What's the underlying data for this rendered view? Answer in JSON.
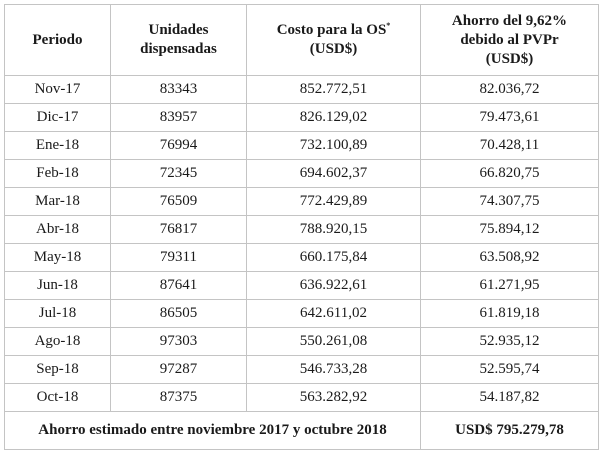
{
  "table": {
    "headers": {
      "periodo": "Periodo",
      "unidades": [
        "Unidades",
        "dispensadas"
      ],
      "costo": [
        "Costo para la OS",
        "*",
        "(USD$)"
      ],
      "ahorro": [
        "Ahorro del 9,62%",
        "debido al PVPr",
        "(USD$)"
      ]
    },
    "rows": [
      {
        "periodo": "Nov-17",
        "unidades": "83343",
        "costo": "852.772,51",
        "ahorro": "82.036,72"
      },
      {
        "periodo": "Dic-17",
        "unidades": "83957",
        "costo": "826.129,02",
        "ahorro": "79.473,61"
      },
      {
        "periodo": "Ene-18",
        "unidades": "76994",
        "costo": "732.100,89",
        "ahorro": "70.428,11"
      },
      {
        "periodo": "Feb-18",
        "unidades": "72345",
        "costo": "694.602,37",
        "ahorro": "66.820,75"
      },
      {
        "periodo": "Mar-18",
        "unidades": "76509",
        "costo": "772.429,89",
        "ahorro": "74.307,75"
      },
      {
        "periodo": "Abr-18",
        "unidades": "76817",
        "costo": "788.920,15",
        "ahorro": "75.894,12"
      },
      {
        "periodo": "May-18",
        "unidades": "79311",
        "costo": "660.175,84",
        "ahorro": "63.508,92"
      },
      {
        "periodo": "Jun-18",
        "unidades": "87641",
        "costo": "636.922,61",
        "ahorro": "61.271,95"
      },
      {
        "periodo": "Jul-18",
        "unidades": "86505",
        "costo": "642.611,02",
        "ahorro": "61.819,18"
      },
      {
        "periodo": "Ago-18",
        "unidades": "97303",
        "costo": "550.261,08",
        "ahorro": "52.935,12"
      },
      {
        "periodo": "Sep-18",
        "unidades": "97287",
        "costo": "546.733,28",
        "ahorro": "52.595,74"
      },
      {
        "periodo": "Oct-18",
        "unidades": "87375",
        "costo": "563.282,92",
        "ahorro": "54.187,82"
      }
    ],
    "footer": {
      "label": "Ahorro estimado entre noviembre 2017 y octubre 2018",
      "total": "USD$ 795.279,78"
    }
  }
}
